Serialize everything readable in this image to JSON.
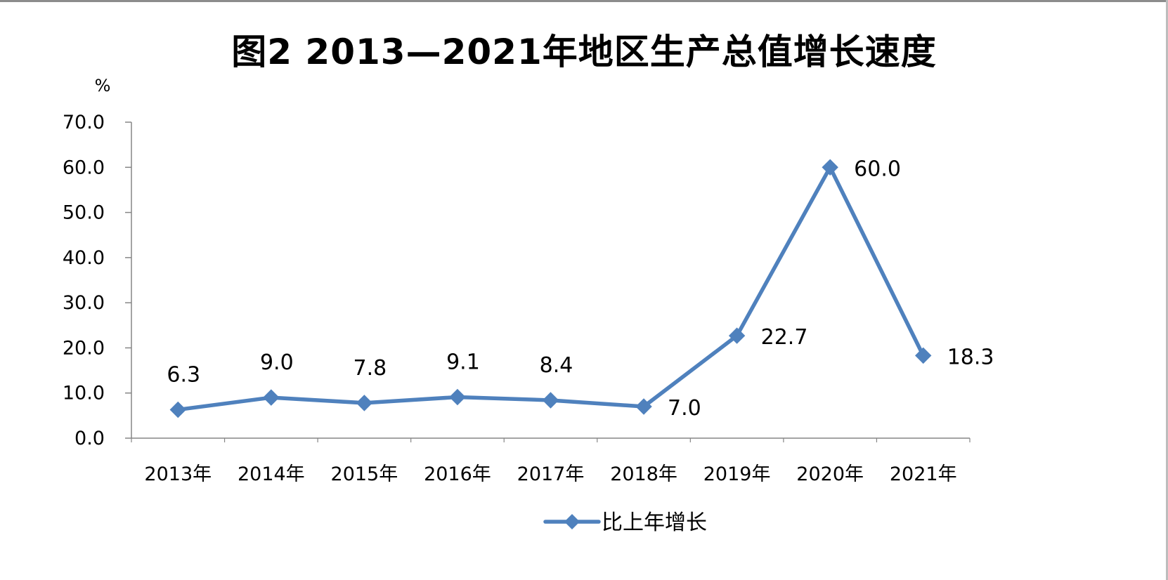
{
  "chart_data": {
    "type": "line",
    "title": "图2  2013—2021年地区生产总值增长速度",
    "ylabel": "%",
    "xlabel": "",
    "categories": [
      "2013年",
      "2014年",
      "2015年",
      "2016年",
      "2017年",
      "2018年",
      "2019年",
      "2020年",
      "2021年"
    ],
    "ylim": [
      0,
      70
    ],
    "yticks": [
      "0.0",
      "10.0",
      "20.0",
      "30.0",
      "40.0",
      "50.0",
      "60.0",
      "70.0"
    ],
    "series": [
      {
        "name": "比上年增长",
        "values": [
          6.3,
          9.0,
          7.8,
          9.1,
          8.4,
          7.0,
          22.7,
          60.0,
          18.3
        ],
        "labels": [
          "6.3",
          "9.0",
          "7.8",
          "9.1",
          "8.4",
          "7.0",
          "22.7",
          "60.0",
          "18.3"
        ],
        "color": "#4f81bd",
        "marker": "diamond"
      }
    ],
    "grid": false,
    "legend_position": "bottom"
  }
}
